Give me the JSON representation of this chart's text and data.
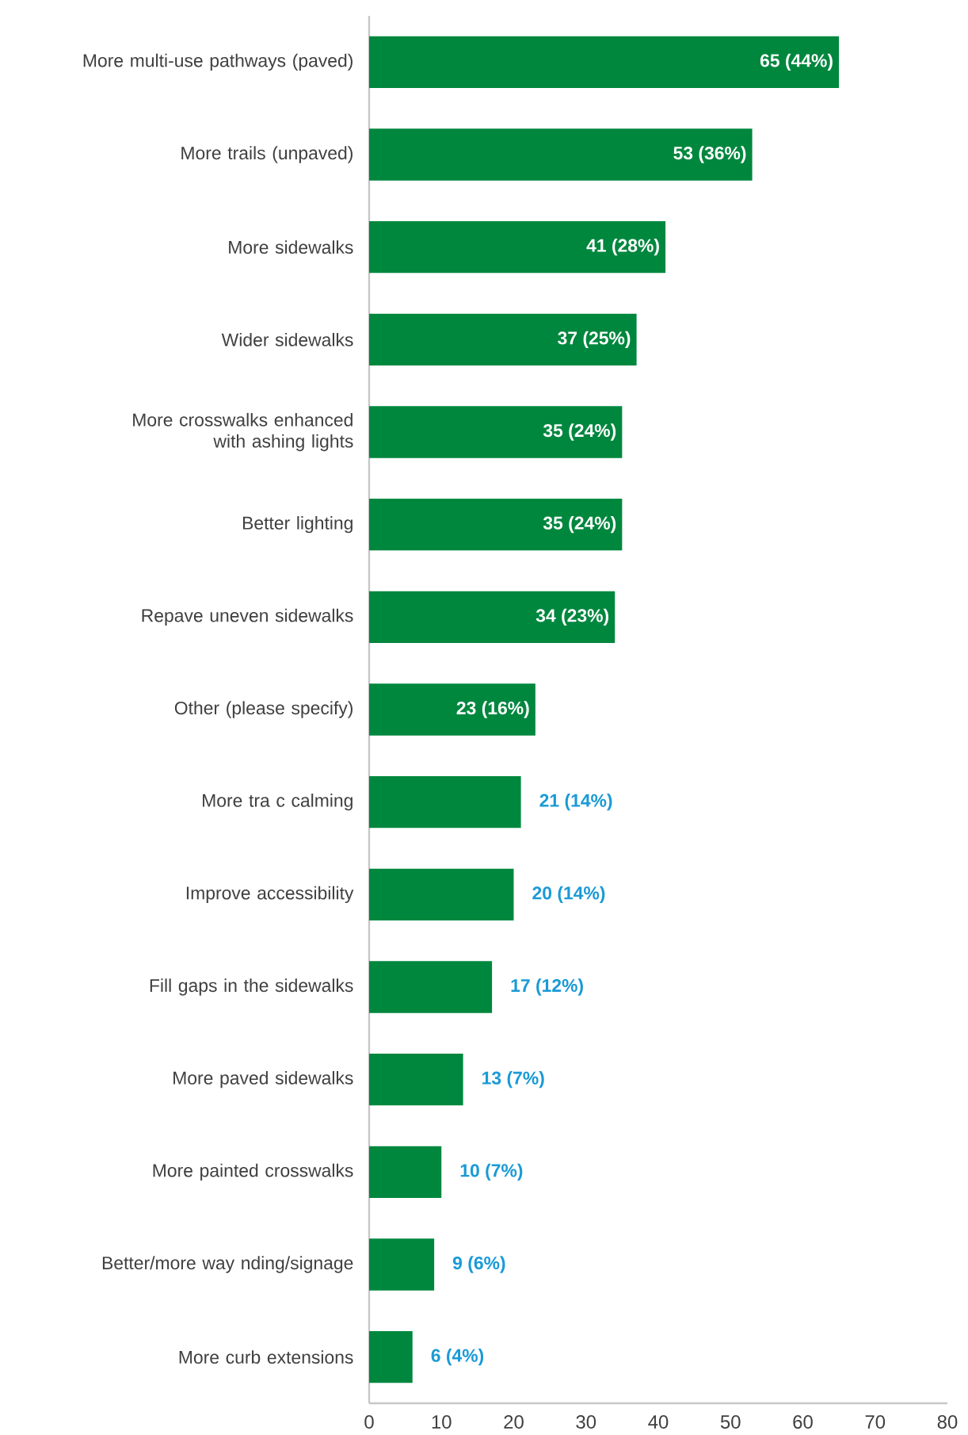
{
  "chart_data": {
    "type": "bar",
    "orientation": "horizontal",
    "color": "#00873e",
    "categories": [
      "More multi-use pathways (paved)",
      "More trails (unpaved)",
      "More sidewalks",
      "Wider sidewalks",
      "More crosswalks enhanced with  ashing lights",
      "Better lighting",
      "Repave uneven sidewalks",
      "Other (please specify)",
      "More tra c calming",
      "Improve accessibility",
      "Fill gaps in the sidewalks",
      "More paved sidewalks",
      "More painted crosswalks",
      "Better/more way nding/signage",
      "More curb extensions"
    ],
    "values": [
      65,
      53,
      41,
      37,
      35,
      35,
      34,
      23,
      21,
      20,
      17,
      13,
      10,
      9,
      6
    ],
    "value_labels": [
      "65 (44%)",
      "53 (36%)",
      "41 (28%)",
      "37 (25%)",
      "35 (24%)",
      "35 (24%)",
      "34 (23%)",
      "23 (16%)",
      "21 (14%)",
      "20 (14%)",
      "17 (12%)",
      "13 (7%)",
      "10 (7%)",
      "9 (6%)",
      "6 (4%)"
    ],
    "xlim": [
      0,
      80
    ],
    "xticks": [
      0,
      10,
      20,
      30,
      40,
      50,
      60,
      70,
      80
    ]
  }
}
